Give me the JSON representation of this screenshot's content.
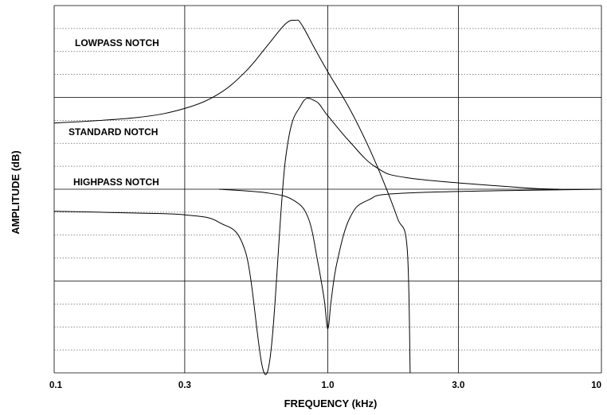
{
  "chart_data": {
    "type": "line",
    "xlabel": "FREQUENCY (kHz)",
    "ylabel": "AMPLITUDE (dB)",
    "x_scale": "log",
    "xlim": [
      0.1,
      10
    ],
    "x_ticks": [
      {
        "value": 0.1,
        "label": "0.1"
      },
      {
        "value": 0.3,
        "label": "0.3"
      },
      {
        "value": 1.0,
        "label": "1.0"
      },
      {
        "value": 3.0,
        "label": "3.0"
      },
      {
        "value": 10,
        "label": "10"
      }
    ],
    "y_tick_labels_shown": false,
    "grid": {
      "vertical": "solid at x ticks",
      "horizontal": "solid major lines with dotted minor lines between"
    },
    "legend": "none (series labelled inline)",
    "series": [
      {
        "name": "LOWPASS NOTCH",
        "points": [
          [
            0.1,
            0.68
          ],
          [
            0.2,
            0.695
          ],
          [
            0.3,
            0.72
          ],
          [
            0.4,
            0.76
          ],
          [
            0.5,
            0.82
          ],
          [
            0.6,
            0.89
          ],
          [
            0.7,
            0.95
          ],
          [
            0.76,
            0.96
          ],
          [
            0.8,
            0.95
          ],
          [
            0.9,
            0.88
          ],
          [
            1.0,
            0.82
          ],
          [
            1.2,
            0.72
          ],
          [
            1.4,
            0.62
          ],
          [
            1.6,
            0.52
          ],
          [
            1.8,
            0.42
          ],
          [
            1.95,
            0.34
          ],
          [
            2.0,
            0.0
          ]
        ]
      },
      {
        "name": "STANDARD NOTCH",
        "points": [
          [
            0.4,
            0.5
          ],
          [
            0.6,
            0.49
          ],
          [
            0.75,
            0.47
          ],
          [
            0.85,
            0.42
          ],
          [
            0.92,
            0.3
          ],
          [
            0.97,
            0.2
          ],
          [
            1.0,
            0.12
          ],
          [
            1.03,
            0.2
          ],
          [
            1.08,
            0.3
          ],
          [
            1.2,
            0.42
          ],
          [
            1.4,
            0.47
          ],
          [
            2.0,
            0.49
          ],
          [
            10,
            0.5
          ]
        ]
      },
      {
        "name": "HIGHPASS NOTCH",
        "points": [
          [
            0.1,
            0.44
          ],
          [
            0.2,
            0.435
          ],
          [
            0.3,
            0.43
          ],
          [
            0.4,
            0.41
          ],
          [
            0.5,
            0.33
          ],
          [
            0.6,
            0.0
          ],
          [
            0.7,
            0.58
          ],
          [
            0.8,
            0.73
          ],
          [
            0.9,
            0.74
          ],
          [
            1.0,
            0.7
          ],
          [
            1.2,
            0.63
          ],
          [
            1.5,
            0.56
          ],
          [
            2.0,
            0.53
          ],
          [
            5.0,
            0.505
          ],
          [
            7.0,
            0.5
          ]
        ]
      }
    ]
  }
}
